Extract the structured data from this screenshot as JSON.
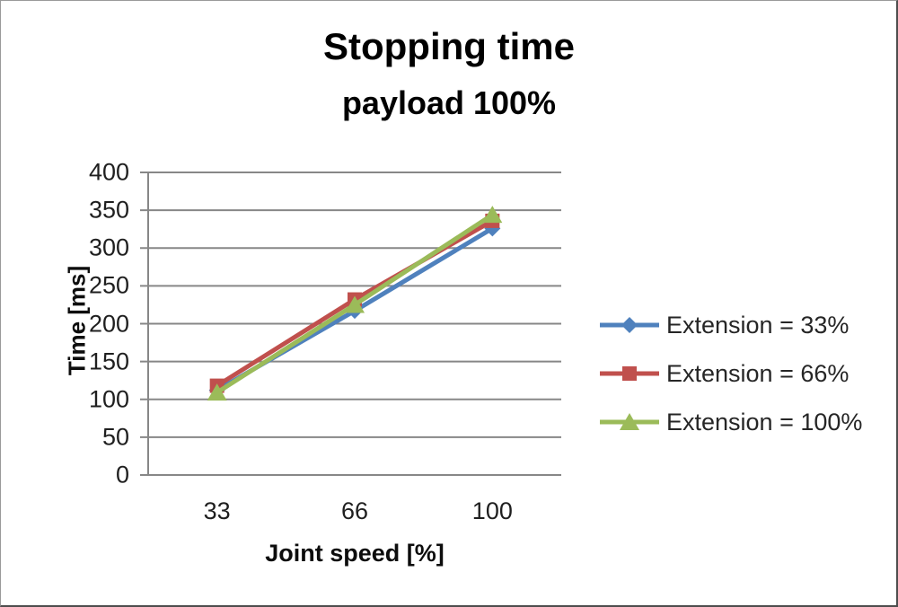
{
  "chart_data": {
    "type": "line",
    "title": "Stopping time",
    "subtitle": "payload 100%",
    "xlabel": "Joint speed [%]",
    "ylabel": "Time [ms]",
    "categories": [
      "33",
      "66",
      "100"
    ],
    "yticks": [
      0,
      50,
      100,
      150,
      200,
      250,
      300,
      350,
      400
    ],
    "ylim": [
      0,
      400
    ],
    "grid": true,
    "grid_color": "#878787",
    "axis_color": "#878787",
    "legend_position": "right",
    "series": [
      {
        "name": "Extension = 33%",
        "color": "#4F81BD",
        "marker": "diamond",
        "values": [
          112,
          217,
          326
        ]
      },
      {
        "name": "Extension = 66%",
        "color": "#C0504D",
        "marker": "square",
        "values": [
          118,
          232,
          336
        ]
      },
      {
        "name": "Extension = 100%",
        "color": "#9BBB59",
        "marker": "triangle",
        "values": [
          109,
          225,
          344
        ]
      }
    ]
  }
}
